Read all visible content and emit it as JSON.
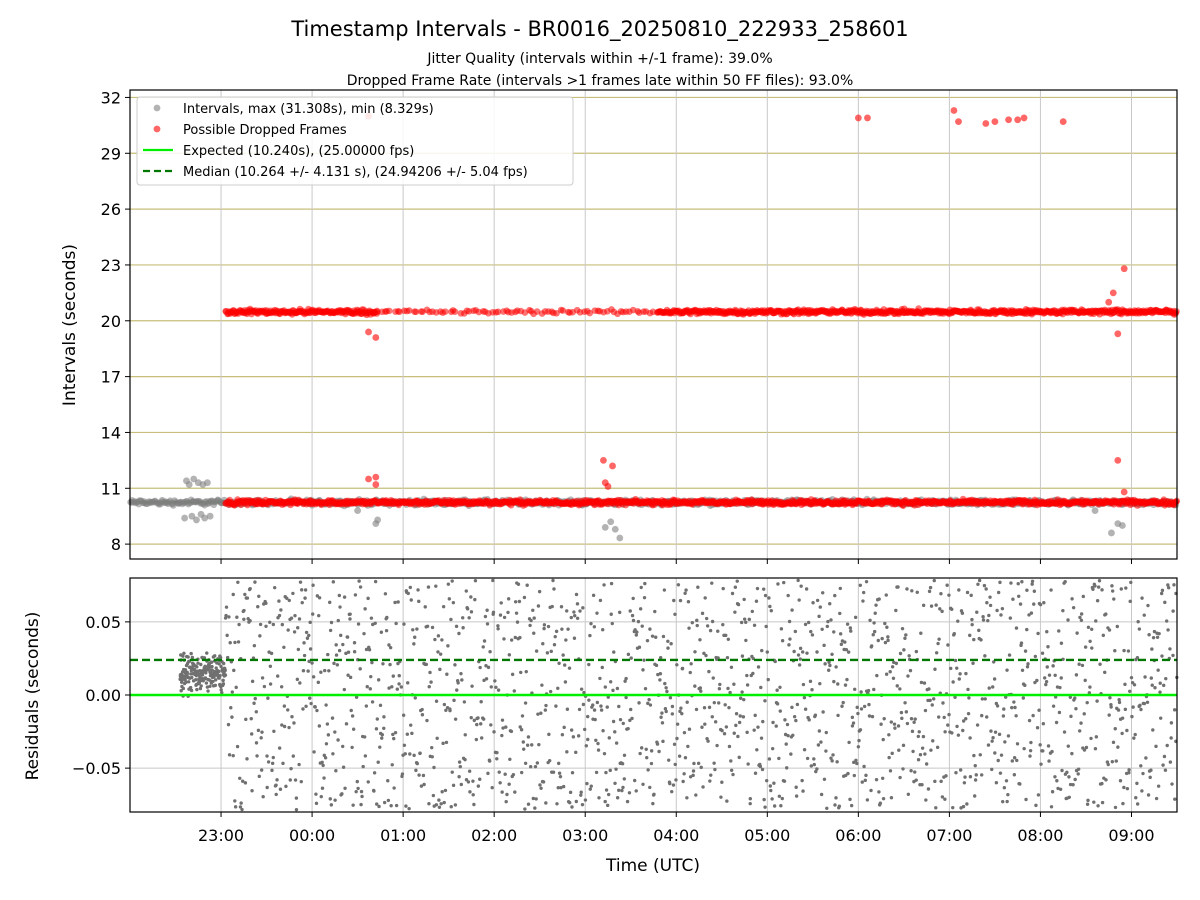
{
  "title": "Timestamp Intervals - BR0016_20250810_222933_258601",
  "subtitle_1": "Jitter Quality (intervals within +/-1 frame): 39.0%",
  "subtitle_2": "Dropped Frame Rate (intervals >1 frames late within 50 FF files): 93.0%",
  "colors": {
    "intervals": "#808080",
    "dropped": "#ff0000",
    "expected": "#00ee00",
    "median": "#007700",
    "hgrid_top": "#c8be7a",
    "grid": "#c8c8c8"
  },
  "chart_data": [
    {
      "type": "scatter",
      "title": "Timestamp Intervals - BR0016_20250810_222933_258601",
      "ylabel": "Intervals (seconds)",
      "xlabel": "",
      "xlim_hours": [
        22.0,
        33.5
      ],
      "ylim": [
        7.2,
        32.4
      ],
      "yticks": [
        8,
        11,
        14,
        17,
        20,
        23,
        26,
        29,
        32
      ],
      "xticks_hours": [
        23,
        24,
        25,
        26,
        27,
        28,
        29,
        30,
        31,
        32,
        33
      ],
      "grid": true,
      "legend": {
        "placement": "top-left",
        "entries": [
          {
            "label": "Intervals, max (31.308s), min (8.329s)",
            "marker": "dot",
            "color": "#808080"
          },
          {
            "label": "Possible Dropped Frames",
            "marker": "dot",
            "color": "#ff0000"
          },
          {
            "label": "Expected (10.240s), (25.00000 fps)",
            "marker": "line",
            "color": "#00ee00"
          },
          {
            "label": "Median (10.264 +/- 4.131 s), (24.94206 +/- 5.04 fps)",
            "marker": "dashed",
            "color": "#007700"
          }
        ]
      },
      "series": [
        {
          "name": "Intervals, max (31.308s), min (8.329s)",
          "bands": [
            {
              "x_start": 22.0,
              "x_end": 33.5,
              "y_center": 10.24,
              "y_spread": 0.25,
              "density": "dense"
            }
          ],
          "points": [
            {
              "x": 22.62,
              "y": 11.4
            },
            {
              "x": 22.65,
              "y": 11.2
            },
            {
              "x": 22.7,
              "y": 11.5
            },
            {
              "x": 22.75,
              "y": 11.3
            },
            {
              "x": 22.8,
              "y": 11.2
            },
            {
              "x": 22.85,
              "y": 11.3
            },
            {
              "x": 22.6,
              "y": 9.4
            },
            {
              "x": 22.68,
              "y": 9.5
            },
            {
              "x": 22.73,
              "y": 9.3
            },
            {
              "x": 22.78,
              "y": 9.6
            },
            {
              "x": 22.82,
              "y": 9.4
            },
            {
              "x": 22.88,
              "y": 9.5
            },
            {
              "x": 24.7,
              "y": 9.1
            },
            {
              "x": 24.72,
              "y": 9.3
            },
            {
              "x": 24.5,
              "y": 9.8
            },
            {
              "x": 27.22,
              "y": 8.9
            },
            {
              "x": 27.28,
              "y": 9.2
            },
            {
              "x": 27.33,
              "y": 8.8
            },
            {
              "x": 27.38,
              "y": 8.33
            },
            {
              "x": 32.78,
              "y": 8.6
            },
            {
              "x": 32.85,
              "y": 9.1
            },
            {
              "x": 32.9,
              "y": 9.0
            },
            {
              "x": 32.6,
              "y": 9.8
            }
          ]
        },
        {
          "name": "Possible Dropped Frames",
          "bands": [
            {
              "x_start": 23.05,
              "x_end": 33.5,
              "y_center": 10.24,
              "y_spread": 0.22,
              "density": "dense"
            },
            {
              "x_start": 23.05,
              "x_end": 24.72,
              "y_center": 20.48,
              "y_spread": 0.22,
              "density": "dense"
            },
            {
              "x_start": 24.72,
              "x_end": 27.8,
              "y_center": 20.48,
              "y_spread": 0.18,
              "density": "sparse"
            },
            {
              "x_start": 27.8,
              "x_end": 33.5,
              "y_center": 20.48,
              "y_spread": 0.22,
              "density": "dense"
            }
          ],
          "points": [
            {
              "x": 24.62,
              "y": 31.0
            },
            {
              "x": 24.62,
              "y": 19.4
            },
            {
              "x": 24.7,
              "y": 19.1
            },
            {
              "x": 24.62,
              "y": 11.5
            },
            {
              "x": 24.7,
              "y": 11.6
            },
            {
              "x": 24.7,
              "y": 11.2
            },
            {
              "x": 27.2,
              "y": 12.5
            },
            {
              "x": 27.3,
              "y": 12.2
            },
            {
              "x": 27.25,
              "y": 11.1
            },
            {
              "x": 27.22,
              "y": 11.3
            },
            {
              "x": 30.0,
              "y": 30.9
            },
            {
              "x": 30.1,
              "y": 30.9
            },
            {
              "x": 31.05,
              "y": 31.3
            },
            {
              "x": 31.1,
              "y": 30.7
            },
            {
              "x": 31.4,
              "y": 30.6
            },
            {
              "x": 31.5,
              "y": 30.7
            },
            {
              "x": 31.65,
              "y": 30.8
            },
            {
              "x": 31.75,
              "y": 30.8
            },
            {
              "x": 31.82,
              "y": 30.9
            },
            {
              "x": 32.25,
              "y": 30.7
            },
            {
              "x": 32.75,
              "y": 21.0
            },
            {
              "x": 32.8,
              "y": 21.5
            },
            {
              "x": 32.85,
              "y": 19.3
            },
            {
              "x": 32.92,
              "y": 22.8
            },
            {
              "x": 32.85,
              "y": 12.5
            },
            {
              "x": 32.92,
              "y": 10.8
            }
          ]
        }
      ],
      "lines": [
        {
          "name": "Expected (10.240s), (25.00000 fps)",
          "y": 10.24,
          "x_start": 22.0,
          "x_end": 23.05,
          "style": "solid",
          "color": "#00ee00"
        },
        {
          "name": "Median (10.264 +/- 4.131 s), (24.94206 +/- 5.04 fps)",
          "y": 10.264,
          "x_start": 22.0,
          "x_end": 23.05,
          "style": "dashed",
          "color": "#007700"
        }
      ]
    },
    {
      "type": "scatter",
      "title": "",
      "ylabel": "Residuals (seconds)",
      "xlabel": "Time (UTC)",
      "xlim_hours": [
        22.0,
        33.5
      ],
      "ylim": [
        -0.08,
        0.08
      ],
      "yticks": [
        -0.05,
        0.0,
        0.05
      ],
      "ytick_labels": [
        "−0.05",
        "0.00",
        "0.05"
      ],
      "xticks_hours": [
        23,
        24,
        25,
        26,
        27,
        28,
        29,
        30,
        31,
        32,
        33
      ],
      "xtick_labels": [
        "23:00",
        "00:00",
        "01:00",
        "02:00",
        "03:00",
        "04:00",
        "05:00",
        "06:00",
        "07:00",
        "08:00",
        "09:00"
      ],
      "grid": true,
      "series": [
        {
          "name": "Residuals",
          "bands": [
            {
              "x_start": 22.55,
              "x_end": 23.05,
              "y_center": 0.015,
              "y_spread": 0.015,
              "density": "dense"
            },
            {
              "x_start": 23.05,
              "x_end": 33.5,
              "y_center": 0.0,
              "y_spread": 0.08,
              "density": "medium"
            }
          ]
        }
      ],
      "lines": [
        {
          "y": 0.0,
          "style": "solid",
          "color": "#00ee00"
        },
        {
          "y": 0.024,
          "style": "dashed",
          "color": "#007700"
        }
      ]
    }
  ]
}
